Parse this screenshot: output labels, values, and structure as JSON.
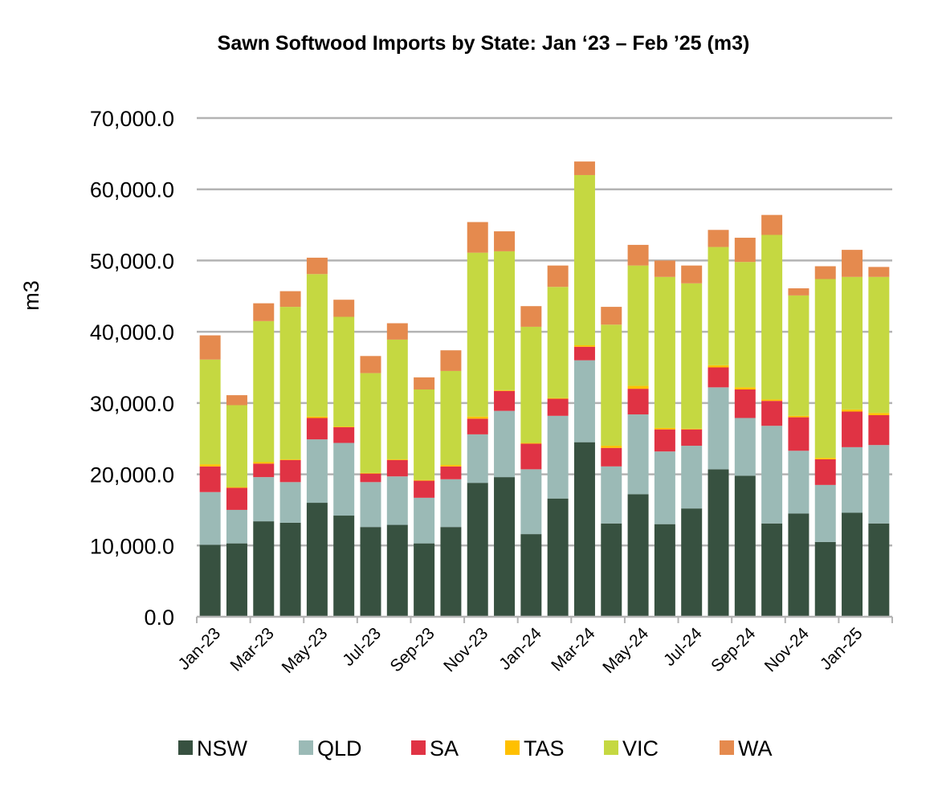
{
  "chart_data": {
    "type": "bar",
    "stacked": true,
    "title": "Sawn Softwood Imports by State: Jan ‘23 – Feb ’25 (m3)",
    "xlabel": "",
    "ylabel": "m3",
    "ylim": [
      0,
      70000
    ],
    "yticks": [
      "0.0",
      "10,000.0",
      "20,000.0",
      "30,000.0",
      "40,000.0",
      "50,000.0",
      "60,000.0",
      "70,000.0"
    ],
    "grid": true,
    "legend_position": "bottom",
    "categories": [
      "Jan-23",
      "Feb-23",
      "Mar-23",
      "Apr-23",
      "May-23",
      "Jun-23",
      "Jul-23",
      "Aug-23",
      "Sep-23",
      "Oct-23",
      "Nov-23",
      "Dec-23",
      "Jan-24",
      "Feb-24",
      "Mar-24",
      "Apr-24",
      "May-24",
      "Jun-24",
      "Jul-24",
      "Aug-24",
      "Sep-24",
      "Oct-24",
      "Nov-24",
      "Dec-24",
      "Jan-25",
      "Feb-25"
    ],
    "tick_labels": [
      "Jan-23",
      "Mar-23",
      "May-23",
      "Jul-23",
      "Sep-23",
      "Nov-23",
      "Jan-24",
      "Mar-24",
      "May-24",
      "Jul-24",
      "Sep-24",
      "Nov-24",
      "Jan-25"
    ],
    "series": [
      {
        "name": "NSW",
        "color": "#375140",
        "values": [
          10100,
          10300,
          13400,
          13200,
          16000,
          14200,
          12600,
          12900,
          10300,
          12600,
          18800,
          19600,
          11600,
          16600,
          24500,
          13100,
          17200,
          13000,
          15200,
          20700,
          19800,
          13100,
          14500,
          10500,
          14600,
          13100
        ]
      },
      {
        "name": "QLD",
        "color": "#9bbab6",
        "values": [
          7400,
          4700,
          6200,
          5700,
          8900,
          10200,
          6300,
          6800,
          6400,
          6700,
          6800,
          9300,
          9100,
          11600,
          11500,
          8000,
          11200,
          10200,
          8800,
          11500,
          8100,
          13700,
          8800,
          8000,
          9200,
          11000
        ]
      },
      {
        "name": "SA",
        "color": "#e03344",
        "values": [
          3600,
          3100,
          1900,
          3100,
          3000,
          2200,
          1200,
          2300,
          2400,
          1800,
          2200,
          2800,
          3600,
          2400,
          1900,
          2600,
          3600,
          3100,
          2300,
          2800,
          4000,
          3500,
          4700,
          3600,
          5000,
          4200
        ]
      },
      {
        "name": "TAS",
        "color": "#ffc000",
        "values": [
          300,
          100,
          200,
          100,
          200,
          100,
          100,
          100,
          100,
          200,
          300,
          100,
          100,
          100,
          200,
          300,
          400,
          200,
          100,
          300,
          300,
          200,
          200,
          200,
          300,
          300
        ]
      },
      {
        "name": "VIC",
        "color": "#c5d841",
        "values": [
          14700,
          11500,
          19800,
          21400,
          20000,
          15400,
          14000,
          16800,
          12700,
          13200,
          23000,
          19500,
          16300,
          15600,
          23900,
          17000,
          16900,
          21200,
          20400,
          16600,
          17600,
          23100,
          16900,
          25100,
          18600,
          19100
        ]
      },
      {
        "name": "WA",
        "color": "#e58a4e",
        "values": [
          3400,
          1400,
          2500,
          2200,
          2300,
          2400,
          2400,
          2300,
          1700,
          2900,
          4300,
          2800,
          2900,
          3000,
          1900,
          2500,
          2900,
          2300,
          2500,
          2400,
          3400,
          2800,
          1000,
          1800,
          3800,
          1400
        ]
      }
    ]
  }
}
